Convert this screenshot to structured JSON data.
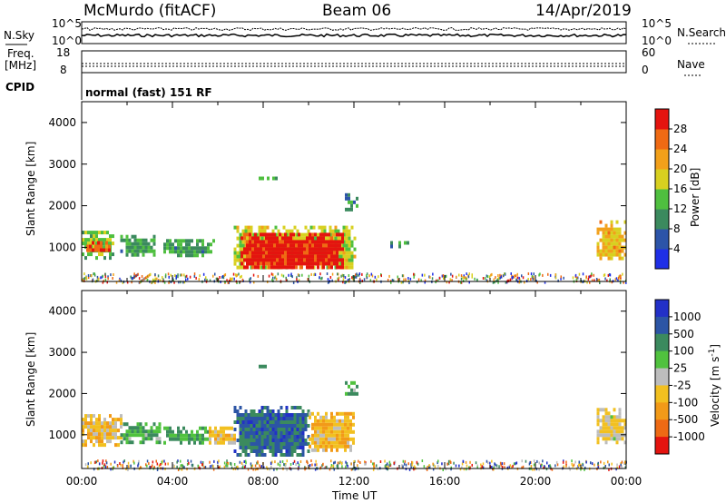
{
  "header": {
    "station": "McMurdo (fitACF)",
    "beam": "Beam 06",
    "date": "14/Apr/2019"
  },
  "noise_panel": {
    "left_label": "N.Sky",
    "right_label": "N.Search",
    "ticks": [
      "10^5",
      "10^0"
    ]
  },
  "freq_panel": {
    "left_label_line1": "Freq.",
    "left_label_line2": "[MHz]",
    "left_ticks": [
      "18",
      "8"
    ],
    "right_label": "Nave",
    "right_ticks": [
      "60",
      "0"
    ]
  },
  "cpid": {
    "label": "CPID",
    "text": "normal (fast) 151 RF"
  },
  "chart_data": [
    {
      "type": "heatmap",
      "title": "",
      "xlabel": "",
      "ylabel": "Slant Range [km]",
      "x_range_hours": [
        0,
        24
      ],
      "ylim": [
        180,
        4500
      ],
      "yticks": [
        1000,
        2000,
        3000,
        4000
      ],
      "colorbar": {
        "label": "Power [dB]",
        "range": [
          0,
          32
        ],
        "ticks": [
          "4",
          "8",
          "12",
          "16",
          "20",
          "24",
          "28"
        ],
        "colors": [
          "#1f2fe6",
          "#2c54a8",
          "#3b8a5e",
          "#4fbf3f",
          "#d8d020",
          "#f2a01a",
          "#ef6a14",
          "#e4140f"
        ]
      },
      "regions": [
        {
          "t0": 0.0,
          "t1": 1.4,
          "r0": 780,
          "r1": 1400,
          "level": 0.45
        },
        {
          "t0": 0.2,
          "t1": 1.2,
          "r0": 900,
          "r1": 1150,
          "level": 0.85
        },
        {
          "t0": 1.7,
          "t1": 3.2,
          "r0": 820,
          "r1": 1300,
          "level": 0.35
        },
        {
          "t0": 3.6,
          "t1": 5.8,
          "r0": 780,
          "r1": 1200,
          "level": 0.35
        },
        {
          "t0": 6.7,
          "t1": 12.0,
          "r0": 520,
          "r1": 1520,
          "level": 0.55
        },
        {
          "t0": 7.0,
          "t1": 11.5,
          "r0": 520,
          "r1": 1350,
          "level": 0.95
        },
        {
          "t0": 7.8,
          "t1": 8.6,
          "r0": 2620,
          "r1": 2700,
          "level": 0.4
        },
        {
          "t0": 11.6,
          "t1": 12.2,
          "r0": 1950,
          "r1": 2300,
          "level": 0.3
        },
        {
          "t0": 13.6,
          "t1": 14.4,
          "r0": 1050,
          "r1": 1150,
          "level": 0.3
        },
        {
          "t0": 22.7,
          "t1": 24.0,
          "r0": 700,
          "r1": 1650,
          "level": 0.65
        }
      ]
    },
    {
      "type": "heatmap",
      "title": "",
      "xlabel": "Time UT",
      "ylabel": "Slant Range [km]",
      "x_range_hours": [
        0,
        24
      ],
      "ylim": [
        180,
        4500
      ],
      "yticks": [
        1000,
        2000,
        3000,
        4000
      ],
      "xticks": [
        "00:00",
        "04:00",
        "08:00",
        "12:00",
        "16:00",
        "20:00",
        "00:00"
      ],
      "colorbar": {
        "label": "Velocity [m s^-1]",
        "ticks": [
          "1000",
          "500",
          "100",
          "25",
          "-25",
          "-100",
          "-500",
          "-1000"
        ],
        "colors": [
          "#2230c8",
          "#2c55a5",
          "#3b8a5e",
          "#50c23e",
          "#bdbdbd",
          "#f2c020",
          "#f29a18",
          "#ee6a14",
          "#e4140f"
        ]
      },
      "regions": [
        {
          "t0": 0.0,
          "t1": 1.7,
          "r0": 780,
          "r1": 1500,
          "level": 0.6
        },
        {
          "t0": 1.7,
          "t1": 3.4,
          "r0": 820,
          "r1": 1300,
          "level": 0.35
        },
        {
          "t0": 3.6,
          "t1": 5.6,
          "r0": 780,
          "r1": 1200,
          "level": 0.35
        },
        {
          "t0": 5.6,
          "t1": 6.8,
          "r0": 800,
          "r1": 1200,
          "level": 0.6
        },
        {
          "t0": 6.7,
          "t1": 10.0,
          "r0": 520,
          "r1": 1700,
          "level": 0.2
        },
        {
          "t0": 10.0,
          "t1": 12.0,
          "r0": 600,
          "r1": 1550,
          "level": 0.62
        },
        {
          "t0": 7.8,
          "t1": 8.6,
          "r0": 2620,
          "r1": 2700,
          "level": 0.3
        },
        {
          "t0": 11.6,
          "t1": 12.2,
          "r0": 1950,
          "r1": 2300,
          "level": 0.35
        },
        {
          "t0": 22.7,
          "t1": 24.0,
          "r0": 800,
          "r1": 1650,
          "level": 0.55
        }
      ]
    }
  ]
}
